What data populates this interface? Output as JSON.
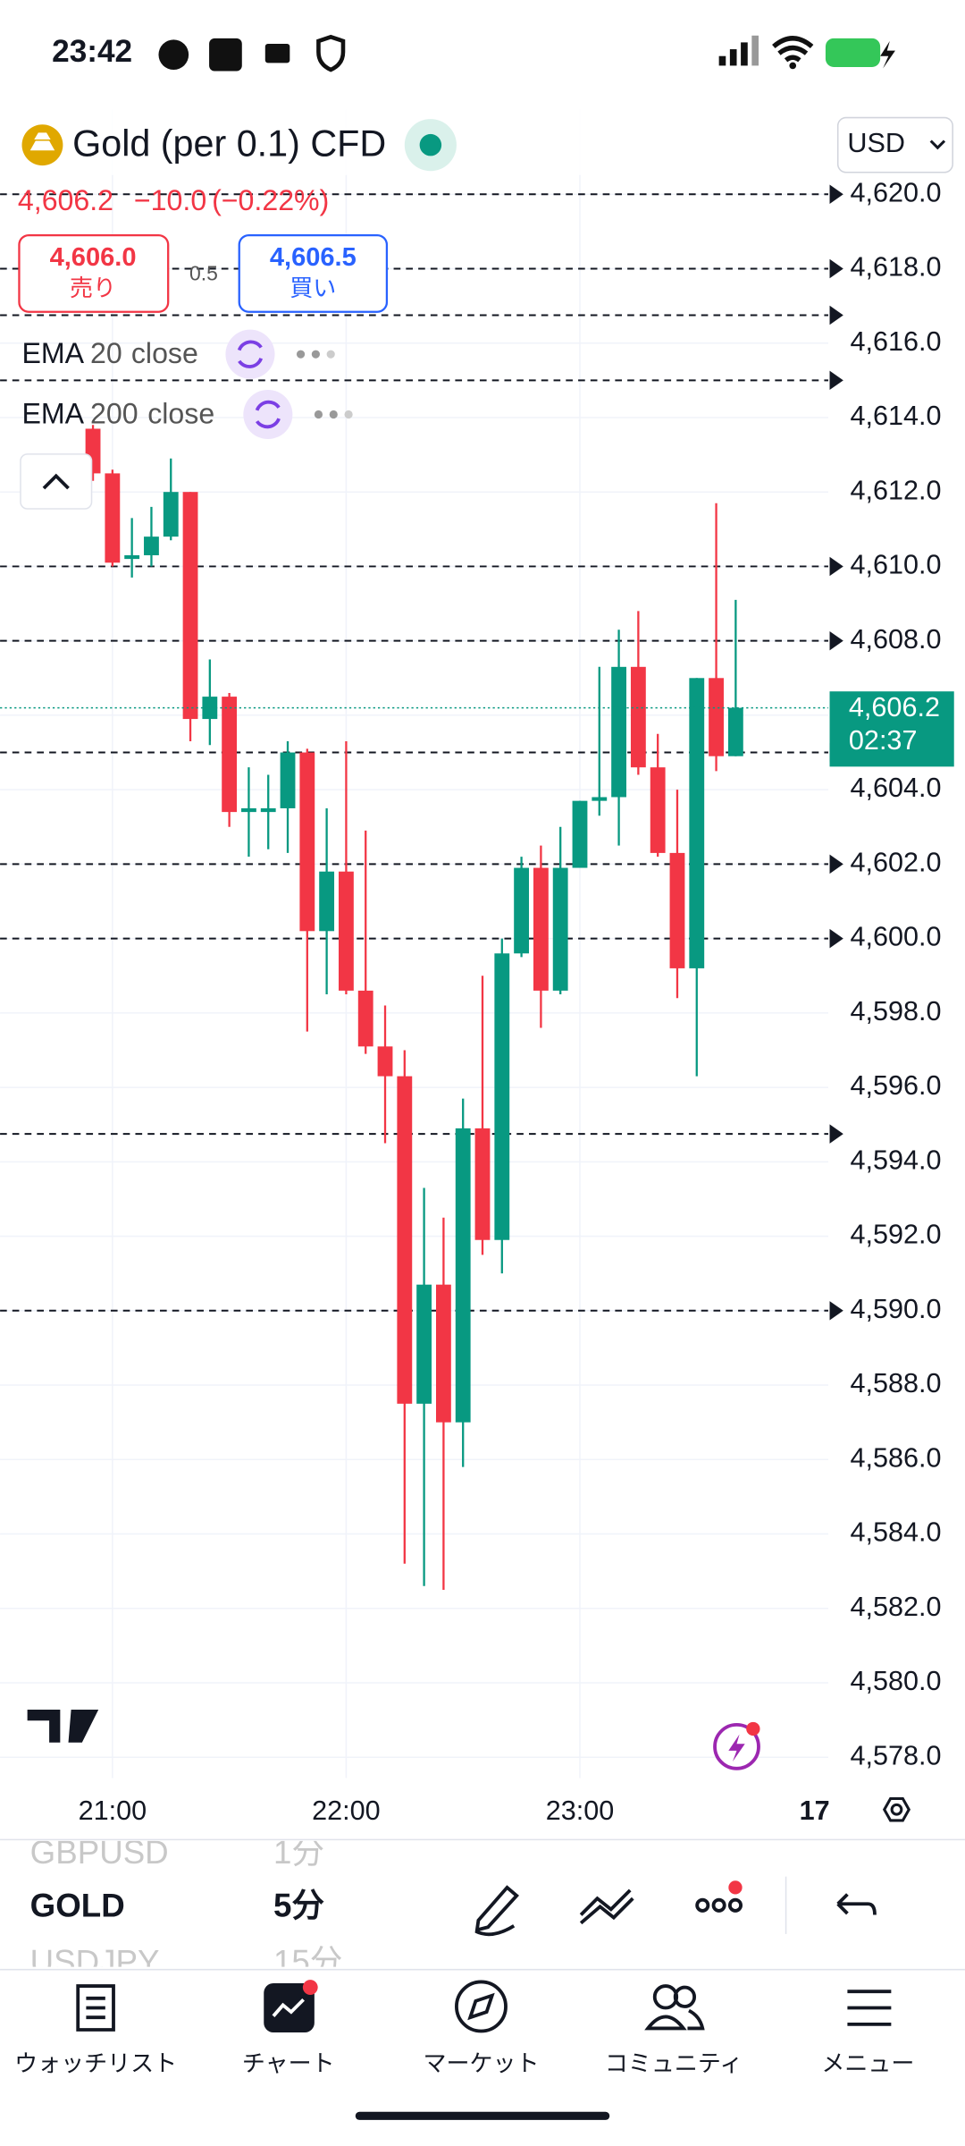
{
  "status_bar": {
    "time": "23:42"
  },
  "header": {
    "symbol": "Gold (per 0.1) CFD",
    "currency": "USD"
  },
  "quote": {
    "last": "4,606.2",
    "change": "−10.0",
    "change_percent": "(−0.22%)",
    "sell_price": "4,606.0",
    "sell_label": "売り",
    "spread": "0.5",
    "buy_price": "4,606.5",
    "buy_label": "買い"
  },
  "indicators": [
    {
      "name": "EMA",
      "length": "20",
      "source": "close"
    },
    {
      "name": "EMA",
      "length": "200",
      "source": "close"
    }
  ],
  "chart": {
    "type": "candlestick",
    "up_color": "#089981",
    "down_color": "#f23645",
    "categories": [
      null,
      "21:00",
      null,
      null,
      null,
      null,
      null,
      null,
      null,
      null,
      null,
      null,
      null,
      "22:00",
      null,
      null,
      null,
      null,
      null,
      null,
      null,
      null,
      null,
      null,
      null,
      "23:00",
      null,
      null,
      null,
      null,
      null,
      null,
      null,
      null
    ],
    "open": [
      4613.7,
      4612.5,
      4610.2,
      4610.3,
      4610.8,
      4612.0,
      4605.9,
      4606.5,
      4603.4,
      4603.4,
      4603.5,
      4605.0,
      4600.2,
      4601.8,
      4598.6,
      4597.1,
      4596.3,
      4587.5,
      4590.7,
      4587.0,
      4594.9,
      4591.9,
      4599.6,
      4601.9,
      4598.6,
      4601.9,
      4603.7,
      4603.8,
      4607.3,
      4604.6,
      4602.3,
      4599.2,
      4607.0,
      4604.9
    ],
    "high": [
      4613.8,
      4612.6,
      4611.3,
      4611.6,
      4612.9,
      4612.0,
      4607.5,
      4606.6,
      4604.6,
      4604.4,
      4605.3,
      4605.1,
      4603.5,
      4605.3,
      4602.9,
      4598.2,
      4597.0,
      4593.3,
      4592.5,
      4595.7,
      4599.0,
      4600.0,
      4602.2,
      4602.5,
      4603.0,
      4603.7,
      4607.3,
      4608.3,
      4608.8,
      4605.5,
      4604.0,
      4607.0,
      4611.7,
      4609.1
    ],
    "low": [
      4612.3,
      4610.0,
      4609.7,
      4610.0,
      4610.7,
      4605.3,
      4605.2,
      4603.0,
      4602.2,
      4602.4,
      4602.3,
      4597.5,
      4598.5,
      4598.5,
      4596.9,
      4594.5,
      4583.2,
      4582.6,
      4582.5,
      4585.8,
      4591.5,
      4591.0,
      4599.5,
      4597.6,
      4598.5,
      4601.9,
      4603.3,
      4602.5,
      4604.4,
      4602.2,
      4598.4,
      4596.3,
      4604.5,
      4604.9
    ],
    "close": [
      4612.5,
      4610.1,
      4610.3,
      4610.8,
      4612.0,
      4605.9,
      4606.5,
      4603.4,
      4603.5,
      4603.5,
      4605.0,
      4600.2,
      4601.8,
      4598.6,
      4597.1,
      4596.3,
      4587.5,
      4590.7,
      4587.0,
      4594.9,
      4591.9,
      4599.6,
      4601.9,
      4598.6,
      4601.9,
      4603.7,
      4603.8,
      4607.3,
      4604.6,
      4602.3,
      4599.2,
      4607.0,
      4604.9,
      4606.2
    ],
    "ylim": [
      4577.44,
      4622.28
    ],
    "yticks": [
      {
        "value": 4620.0,
        "label": "4,620.0"
      },
      {
        "value": 4618.0,
        "label": "4,618.0"
      },
      {
        "value": 4616.0,
        "label": "4,616.0"
      },
      {
        "value": 4614.0,
        "label": "4,614.0"
      },
      {
        "value": 4612.0,
        "label": "4,612.0"
      },
      {
        "value": 4610.0,
        "label": "4,610.0"
      },
      {
        "value": 4608.0,
        "label": "4,608.0"
      },
      {
        "value": 4606.0,
        "label": "4,606.0"
      },
      {
        "value": 4604.0,
        "label": "4,604.0"
      },
      {
        "value": 4602.0,
        "label": "4,602.0"
      },
      {
        "value": 4600.0,
        "label": "4,600.0"
      },
      {
        "value": 4598.0,
        "label": "4,598.0"
      },
      {
        "value": 4596.0,
        "label": "4,596.0"
      },
      {
        "value": 4594.0,
        "label": "4,594.0"
      },
      {
        "value": 4592.0,
        "label": "4,592.0"
      },
      {
        "value": 4590.0,
        "label": "4,590.0"
      },
      {
        "value": 4588.0,
        "label": "4,588.0"
      },
      {
        "value": 4586.0,
        "label": "4,586.0"
      },
      {
        "value": 4584.0,
        "label": "4,584.0"
      },
      {
        "value": 4582.0,
        "label": "4,582.0"
      },
      {
        "value": 4580.0,
        "label": "4,580.0"
      },
      {
        "value": 4578.0,
        "label": "4,578.0"
      }
    ],
    "hlines": [
      4620.0,
      4618.0,
      4616.75,
      4615.0,
      4610.0,
      4608.0,
      4605.0,
      4602.0,
      4600.0,
      4594.75,
      4590.0
    ],
    "last_price": {
      "value": 4606.2,
      "label": "4,606.2"
    },
    "countdown": "02:37",
    "date_label": "17"
  },
  "symbol_list": [
    {
      "symbol": "GBPUSD",
      "interval": "1分"
    },
    {
      "symbol": "GOLD",
      "interval": "5分"
    },
    {
      "symbol": "USDJPY",
      "interval": "15分"
    }
  ],
  "nav": [
    "ウォッチリスト",
    "チャート",
    "マーケット",
    "コミュニティ",
    "メニュー"
  ]
}
